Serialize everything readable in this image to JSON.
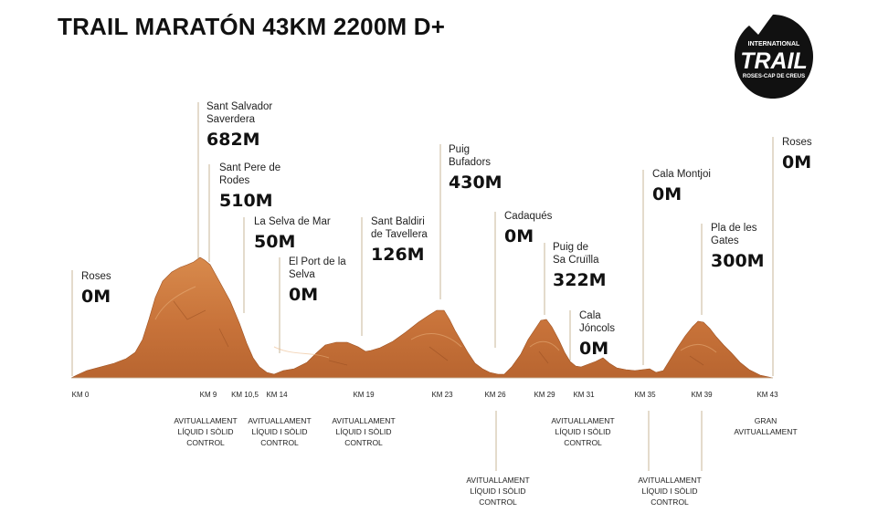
{
  "title": "TRAIL MARATÓN 43KM 2200M D+",
  "logo": {
    "line1": "INTERNATIONAL",
    "line2": "TRAIL",
    "line3": "ROSES-CAP DE CREUS",
    "color": "#111111"
  },
  "colors": {
    "terrain": "#c8733a",
    "terrain_light": "#dd9a62",
    "terrain_dark": "#9e5222",
    "line": "#c9b79a",
    "text": "#111111"
  },
  "waypoints": [
    {
      "name": "Roses",
      "altitude": "0M"
    },
    {
      "name": "Sant Salvador\nSaverdera",
      "altitude": "682M"
    },
    {
      "name": "Sant Pere de\nRodes",
      "altitude": "510M"
    },
    {
      "name": "La Selva de Mar",
      "altitude": "50M"
    },
    {
      "name": "El Port de la\nSelva",
      "altitude": "0M"
    },
    {
      "name": "Sant Baldiri\nde Tavellera",
      "altitude": "126M"
    },
    {
      "name": "Puig\nBufadors",
      "altitude": "430M"
    },
    {
      "name": "Cadaqués",
      "altitude": "0M"
    },
    {
      "name": "Puig de\nSa Cruïlla",
      "altitude": "322M"
    },
    {
      "name": "Cala\nJóncols",
      "altitude": "0M"
    },
    {
      "name": "Cala Montjoi",
      "altitude": "0M"
    },
    {
      "name": "Pla de les\nGates",
      "altitude": "300M"
    },
    {
      "name": "Roses",
      "altitude": "0M"
    }
  ],
  "km_markers": [
    "KM 0",
    "KM 9",
    "KM 10,5",
    "KM 14",
    "KM 19",
    "KM 23",
    "KM 26",
    "KM 29",
    "KM 31",
    "KM 35",
    "KM 39",
    "KM 43"
  ],
  "aid_stations": [
    {
      "km": "KM 9",
      "label": "AVITUALLAMENT\nLÍQUID I SÒLID\nCONTROL"
    },
    {
      "km": "KM 14",
      "label": "AVITUALLAMENT\nLÍQUID I SÒLID\nCONTROL"
    },
    {
      "km": "KM 19",
      "label": "AVITUALLAMENT\nLÍQUID I SÒLID\nCONTROL"
    },
    {
      "km": "KM 26",
      "label": "AVITUALLAMENT\nLÍQUID I SÒLID\nCONTROL"
    },
    {
      "km": "KM 31",
      "label": "AVITUALLAMENT\nLÍQUID I SÒLID\nCONTROL"
    },
    {
      "km": "KM 35",
      "label": "AVITUALLAMENT\nLÍQUID I SÒLID\nCONTROL"
    },
    {
      "km": "KM 43",
      "label": "GRAN\nAVITUALLAMENT"
    }
  ]
}
